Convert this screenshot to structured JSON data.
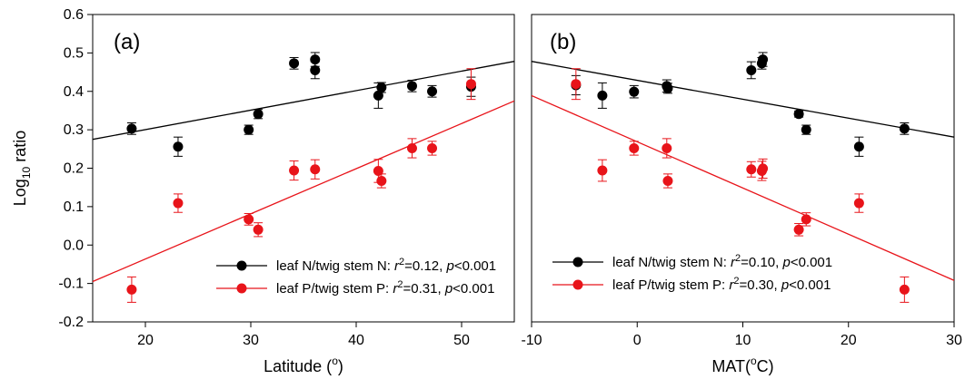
{
  "chart_data": [
    {
      "type": "scatter",
      "panel_label": "(a)",
      "xlabel": "Latitude (",
      "xlabel_sup": "o",
      "xlabel_end": ")",
      "ylabel": "Log",
      "ylabel_sub": "10",
      "ylabel_end": " ratio",
      "xlim": [
        15,
        55
      ],
      "ylim": [
        -0.2,
        0.6
      ],
      "xticks": [
        20,
        30,
        40,
        50
      ],
      "yticks": [
        -0.2,
        -0.1,
        0.0,
        0.1,
        0.2,
        0.3,
        0.4,
        0.5,
        0.6
      ],
      "ytick_labels": [
        "-0.2",
        "-0.1",
        "0.0",
        "0.1",
        "0.2",
        "0.3",
        "0.4",
        "0.5",
        "0.6"
      ],
      "legend_position": "lower-right",
      "series": [
        {
          "color": "#000000",
          "legend_label": "leaf N/twig stem N: ",
          "legend_stat": "r",
          "legend_stat_sup": "2",
          "legend_stat_value": "=0.12, ",
          "legend_p": "p",
          "legend_p_value": "<0.001",
          "points": [
            {
              "x": 18.7,
              "y": 0.303,
              "err": 0.015
            },
            {
              "x": 23.1,
              "y": 0.256,
              "err": 0.025
            },
            {
              "x": 29.8,
              "y": 0.3,
              "err": 0.012
            },
            {
              "x": 30.7,
              "y": 0.341,
              "err": 0.012
            },
            {
              "x": 34.1,
              "y": 0.473,
              "err": 0.015
            },
            {
              "x": 36.1,
              "y": 0.483,
              "err": 0.018
            },
            {
              "x": 36.1,
              "y": 0.455,
              "err": 0.022
            },
            {
              "x": 42.1,
              "y": 0.389,
              "err": 0.033
            },
            {
              "x": 42.4,
              "y": 0.41,
              "err": 0.013
            },
            {
              "x": 45.3,
              "y": 0.414,
              "err": 0.015
            },
            {
              "x": 47.2,
              "y": 0.4,
              "err": 0.015
            },
            {
              "x": 50.9,
              "y": 0.412,
              "err": 0.025
            }
          ],
          "fit": {
            "x": [
              15,
              55
            ],
            "y": [
              0.275,
              0.478
            ]
          }
        },
        {
          "color": "#e8141a",
          "legend_label": "leaf P/twig stem P: ",
          "legend_stat": "r",
          "legend_stat_sup": "2",
          "legend_stat_value": "=0.31, ",
          "legend_p": "p",
          "legend_p_value": "<0.001",
          "points": [
            {
              "x": 18.7,
              "y": -0.116,
              "err": 0.033
            },
            {
              "x": 23.1,
              "y": 0.109,
              "err": 0.024
            },
            {
              "x": 29.8,
              "y": 0.067,
              "err": 0.015
            },
            {
              "x": 30.7,
              "y": 0.04,
              "err": 0.018
            },
            {
              "x": 34.1,
              "y": 0.194,
              "err": 0.025
            },
            {
              "x": 36.1,
              "y": 0.197,
              "err": 0.025
            },
            {
              "x": 42.1,
              "y": 0.193,
              "err": 0.03
            },
            {
              "x": 42.4,
              "y": 0.167,
              "err": 0.018
            },
            {
              "x": 45.3,
              "y": 0.252,
              "err": 0.025
            },
            {
              "x": 47.2,
              "y": 0.252,
              "err": 0.018
            },
            {
              "x": 50.9,
              "y": 0.419,
              "err": 0.04
            }
          ],
          "fit": {
            "x": [
              15,
              55
            ],
            "y": [
              -0.095,
              0.375
            ]
          }
        }
      ]
    },
    {
      "type": "scatter",
      "panel_label": "(b)",
      "xlabel": "MAT(",
      "xlabel_sup": "o",
      "xlabel_end": "C)",
      "xlim": [
        -10,
        30
      ],
      "ylim": [
        -0.2,
        0.6
      ],
      "xticks": [
        -10,
        0,
        10,
        20,
        30
      ],
      "legend_position": "lower-left",
      "series": [
        {
          "color": "#000000",
          "legend_label": "leaf N/twig stem N: ",
          "legend_stat": "r",
          "legend_stat_sup": "2",
          "legend_stat_value": "=0.10, ",
          "legend_p": "p",
          "legend_p_value": "<0.001",
          "points": [
            {
              "x": -5.8,
              "y": 0.416,
              "err": 0.025
            },
            {
              "x": -3.3,
              "y": 0.389,
              "err": 0.033
            },
            {
              "x": -0.3,
              "y": 0.399,
              "err": 0.016
            },
            {
              "x": 2.8,
              "y": 0.414,
              "err": 0.016
            },
            {
              "x": 2.9,
              "y": 0.408,
              "err": 0.013
            },
            {
              "x": 10.8,
              "y": 0.455,
              "err": 0.022
            },
            {
              "x": 11.8,
              "y": 0.473,
              "err": 0.015
            },
            {
              "x": 11.9,
              "y": 0.483,
              "err": 0.018
            },
            {
              "x": 15.3,
              "y": 0.341,
              "err": 0.008
            },
            {
              "x": 16.0,
              "y": 0.3,
              "err": 0.012
            },
            {
              "x": 21.0,
              "y": 0.256,
              "err": 0.025
            },
            {
              "x": 25.3,
              "y": 0.303,
              "err": 0.015
            }
          ],
          "fit": {
            "x": [
              -10,
              30
            ],
            "y": [
              0.478,
              0.281
            ]
          }
        },
        {
          "color": "#e8141a",
          "legend_label": "leaf P/twig stem P: ",
          "legend_stat": "r",
          "legend_stat_sup": "2",
          "legend_stat_value": "=0.30, ",
          "legend_p": "p",
          "legend_p_value": "<0.001",
          "points": [
            {
              "x": -5.8,
              "y": 0.419,
              "err": 0.04
            },
            {
              "x": -3.3,
              "y": 0.194,
              "err": 0.028
            },
            {
              "x": -0.3,
              "y": 0.252,
              "err": 0.018
            },
            {
              "x": 2.8,
              "y": 0.252,
              "err": 0.025
            },
            {
              "x": 2.9,
              "y": 0.167,
              "err": 0.018
            },
            {
              "x": 10.8,
              "y": 0.197,
              "err": 0.02
            },
            {
              "x": 11.8,
              "y": 0.193,
              "err": 0.025
            },
            {
              "x": 11.9,
              "y": 0.199,
              "err": 0.025
            },
            {
              "x": 15.3,
              "y": 0.04,
              "err": 0.016
            },
            {
              "x": 16.0,
              "y": 0.067,
              "err": 0.017
            },
            {
              "x": 21.0,
              "y": 0.109,
              "err": 0.024
            },
            {
              "x": 25.3,
              "y": -0.116,
              "err": 0.033
            }
          ],
          "fit": {
            "x": [
              -10,
              30
            ],
            "y": [
              0.389,
              -0.092
            ]
          }
        }
      ]
    }
  ]
}
